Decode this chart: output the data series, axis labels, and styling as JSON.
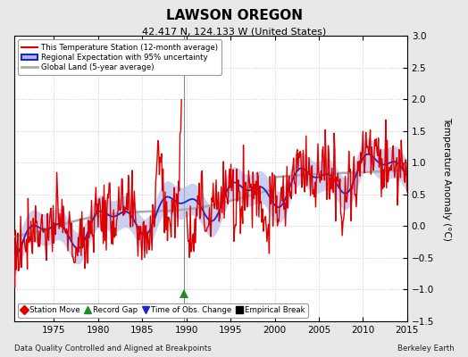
{
  "title": "LAWSON OREGON",
  "subtitle": "42.417 N, 124.133 W (United States)",
  "footer_left": "Data Quality Controlled and Aligned at Breakpoints",
  "footer_right": "Berkeley Earth",
  "xlim": [
    1970.5,
    2015
  ],
  "ylim": [
    -1.5,
    3.0
  ],
  "yticks": [
    -1.5,
    -1.0,
    -0.5,
    0.0,
    0.5,
    1.0,
    1.5,
    2.0,
    2.5,
    3.0
  ],
  "xticks": [
    1975,
    1980,
    1985,
    1990,
    1995,
    2000,
    2005,
    2010,
    2015
  ],
  "ylabel": "Temperature Anomaly (°C)",
  "station_color": "#dd0000",
  "regional_color": "#2222cc",
  "regional_fill_color": "#b0b8e8",
  "global_color": "#aaaaaa",
  "bg_color": "#e8e8e8",
  "plot_bg_color": "#ffffff",
  "legend_items": [
    {
      "label": "This Temperature Station (12-month average)",
      "color": "#dd0000",
      "lw": 1.5
    },
    {
      "label": "Regional Expectation with 95% uncertainty",
      "color": "#2222cc",
      "lw": 1.5
    },
    {
      "label": "Global Land (5-year average)",
      "color": "#aaaaaa",
      "lw": 2.0
    }
  ],
  "marker_items": [
    {
      "label": "Station Move",
      "color": "#dd0000",
      "marker": "D"
    },
    {
      "label": "Record Gap",
      "color": "#228B22",
      "marker": "^"
    },
    {
      "label": "Time of Obs. Change",
      "color": "#2222cc",
      "marker": "v"
    },
    {
      "label": "Empirical Break",
      "color": "#000000",
      "marker": "s"
    }
  ],
  "record_gap_x": 1989.7,
  "record_gap_y": -1.07,
  "grid_color": "#cccccc",
  "vline_x": 1989.7
}
